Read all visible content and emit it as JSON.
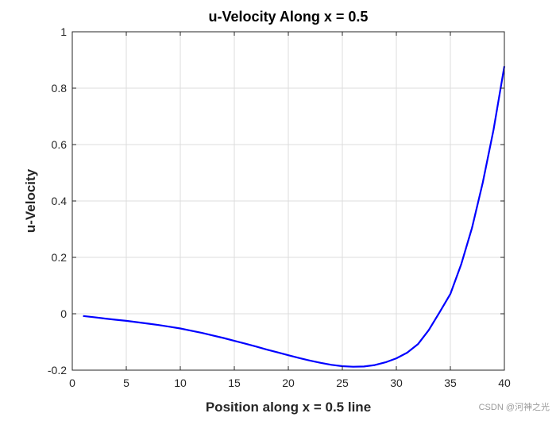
{
  "chart_data": {
    "type": "line",
    "title": "u-Velocity Along x = 0.5",
    "xlabel": "Position along x = 0.5 line",
    "ylabel": "u-Velocity",
    "xlim": [
      0,
      40
    ],
    "ylim": [
      -0.2,
      1
    ],
    "xticks": [
      0,
      5,
      10,
      15,
      20,
      25,
      30,
      35,
      40
    ],
    "yticks": [
      -0.2,
      0,
      0.2,
      0.4,
      0.6,
      0.8,
      1
    ],
    "xtick_labels": [
      "0",
      "5",
      "10",
      "15",
      "20",
      "25",
      "30",
      "35",
      "40"
    ],
    "ytick_labels": [
      "-0.2",
      "0",
      "0.2",
      "0.4",
      "0.6",
      "0.8",
      "1"
    ],
    "grid": true,
    "series": [
      {
        "color": "#0000ff",
        "x": [
          1,
          2,
          3,
          4,
          5,
          6,
          7,
          8,
          9,
          10,
          11,
          12,
          13,
          14,
          15,
          16,
          17,
          18,
          19,
          20,
          21,
          22,
          23,
          24,
          25,
          26,
          27,
          28,
          29,
          30,
          31,
          32,
          33,
          34,
          35,
          36,
          37,
          38,
          39,
          40
        ],
        "y": [
          -0.008,
          -0.012,
          -0.017,
          -0.021,
          -0.025,
          -0.03,
          -0.035,
          -0.04,
          -0.046,
          -0.052,
          -0.06,
          -0.068,
          -0.077,
          -0.086,
          -0.096,
          -0.106,
          -0.116,
          -0.127,
          -0.137,
          -0.147,
          -0.157,
          -0.166,
          -0.174,
          -0.181,
          -0.186,
          -0.188,
          -0.187,
          -0.182,
          -0.172,
          -0.158,
          -0.138,
          -0.108,
          -0.058,
          0.005,
          0.07,
          0.175,
          0.304,
          0.465,
          0.653,
          0.878
        ]
      }
    ]
  },
  "watermark": "CSDN @河神之光"
}
